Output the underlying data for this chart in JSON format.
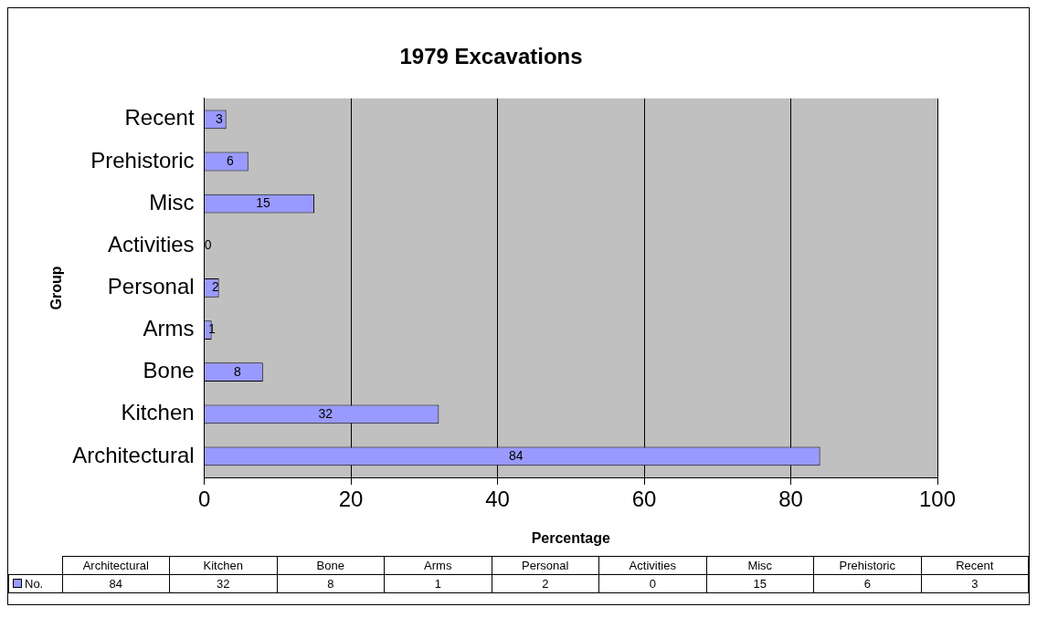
{
  "chart_data": {
    "type": "bar",
    "orientation": "horizontal",
    "title": "1979 Excavations",
    "xlabel": "Percentage",
    "ylabel": "Group",
    "categories": [
      "Recent",
      "Prehistoric",
      "Misc",
      "Activities",
      "Personal",
      "Arms",
      "Bone",
      "Kitchen",
      "Architectural"
    ],
    "series": [
      {
        "name": "No.",
        "color": "#9999ff",
        "values": [
          3,
          6,
          15,
          0,
          2,
          1,
          8,
          32,
          84
        ]
      }
    ],
    "annotations": [
      "84",
      "32",
      "8",
      "1",
      "2",
      "0",
      "15",
      "6",
      "3"
    ],
    "xlim": [
      0,
      100
    ],
    "xticks": [
      0,
      20,
      40,
      60,
      80,
      100
    ],
    "grid": "x",
    "legend": "bottom",
    "data_labels": true
  }
}
